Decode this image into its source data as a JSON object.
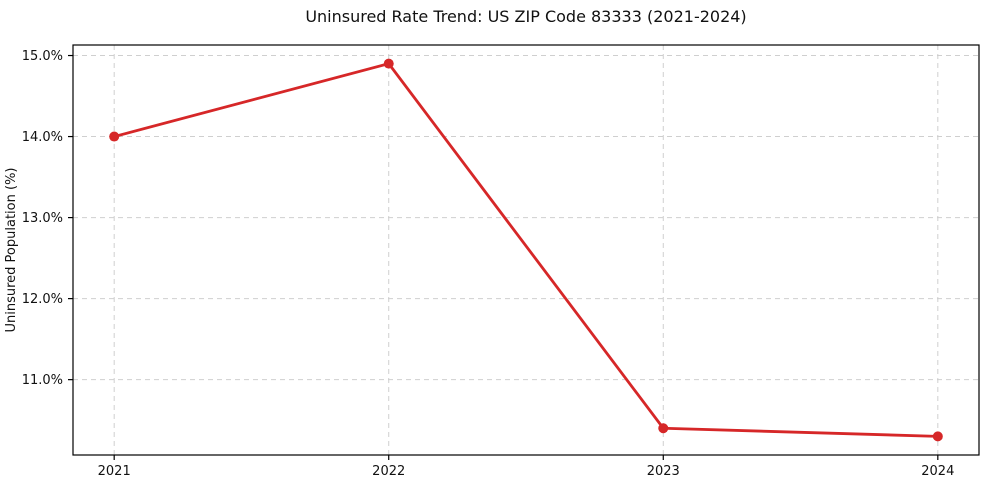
{
  "page": {
    "background_color": "#ffffff",
    "text_color": "#111111"
  },
  "chart_data": {
    "type": "line",
    "title": "Uninsured Rate Trend: US ZIP Code 83333 (2021-2024)",
    "xlabel": "",
    "ylabel": "Uninsured Population (%)",
    "x": [
      2021,
      2022,
      2023,
      2024
    ],
    "xticks": [
      "2021",
      "2022",
      "2023",
      "2024"
    ],
    "series": [
      {
        "name": "uninsured-rate",
        "values": [
          14.0,
          14.9,
          10.4,
          10.3
        ],
        "color": "#d62728",
        "marker": "circle",
        "line_width": 2.8,
        "marker_radius": 5
      }
    ],
    "yticks": [
      11.0,
      12.0,
      13.0,
      14.0,
      15.0
    ],
    "ytick_suffix": "%",
    "ytick_decimals": 1,
    "ylim": [
      10.07,
      15.13
    ],
    "xlim": [
      2020.85,
      2024.15
    ],
    "grid": true,
    "grid_color": "#cfcfcf",
    "grid_dash": "5 4",
    "frame_color": "#000000",
    "legend_position": "none"
  }
}
